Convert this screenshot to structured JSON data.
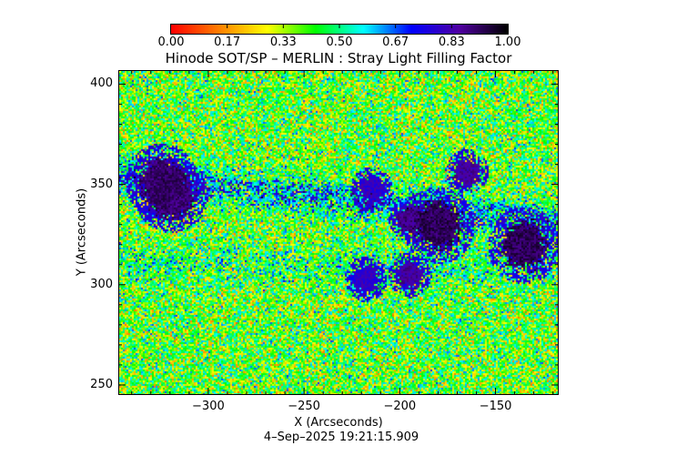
{
  "chart_data": {
    "type": "heatmap",
    "title": "Hinode SOT/SP – MERLIN : Stray Light Filling Factor",
    "xlabel": "X (Arcseconds)",
    "ylabel": "Y (Arcseconds)",
    "xlim": [
      -347,
      -117
    ],
    "ylim": [
      245,
      407
    ],
    "x_ticks": [
      -300,
      -250,
      -200,
      -150
    ],
    "x_tick_labels": [
      "−300",
      "−250",
      "−200",
      "−150"
    ],
    "y_ticks": [
      250,
      300,
      350,
      400
    ],
    "y_tick_labels": [
      "250",
      "300",
      "350",
      "400"
    ],
    "colorbar": {
      "range": [
        0,
        1
      ],
      "colormap": [
        "#ff0000",
        "#ff8000",
        "#ffff00",
        "#00ff00",
        "#00ffff",
        "#0000ff",
        "#5000a0",
        "#000000"
      ],
      "tick_labels": [
        "0.00",
        "0.17",
        "0.33",
        "0.50",
        "0.67",
        "0.83",
        "1.00"
      ]
    },
    "background_value_range": [
      0.1,
      0.6
    ],
    "high_value_regions": [
      {
        "x": -325,
        "y": 352,
        "value": 0.95
      },
      {
        "x": -320,
        "y": 345,
        "value": 0.95
      },
      {
        "x": -180,
        "y": 330,
        "value": 0.97
      },
      {
        "x": -195,
        "y": 333,
        "value": 0.93
      },
      {
        "x": -135,
        "y": 320,
        "value": 0.97
      },
      {
        "x": -195,
        "y": 305,
        "value": 0.9
      },
      {
        "x": -165,
        "y": 357,
        "value": 0.9
      },
      {
        "x": -215,
        "y": 348,
        "value": 0.85
      },
      {
        "x": -218,
        "y": 303,
        "value": 0.85
      }
    ]
  },
  "footer": {
    "timestamp": "4–Sep–2025 19:21:15.909"
  }
}
